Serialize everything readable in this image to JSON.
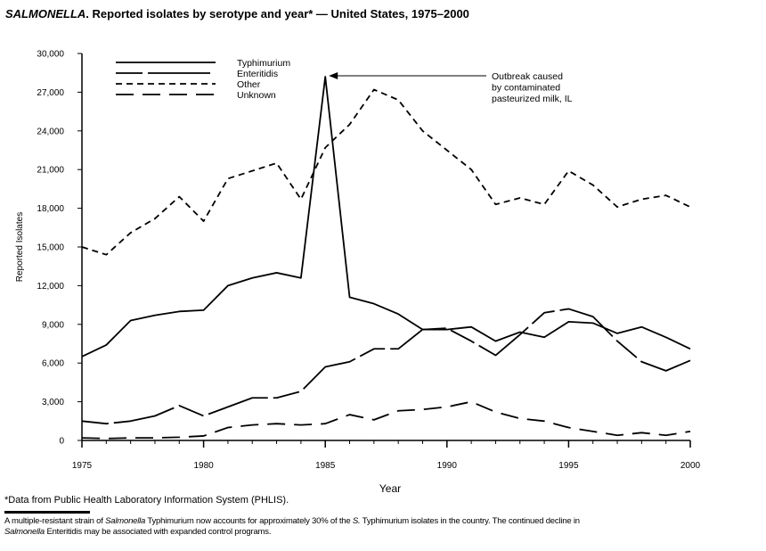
{
  "title": {
    "italic": "SALMONELLA",
    "rest": ". Reported isolates by serotype and year* — United States, 1975–2000"
  },
  "chart_data": {
    "type": "line",
    "xlabel": "Year",
    "ylabel": "Reported Isolates",
    "xlim": [
      1975,
      2000
    ],
    "ylim": [
      0,
      30000
    ],
    "x_ticks": [
      1975,
      1980,
      1985,
      1990,
      1995,
      2000
    ],
    "y_ticks": [
      0,
      3000,
      6000,
      9000,
      12000,
      15000,
      18000,
      21000,
      24000,
      27000,
      30000
    ],
    "y_tick_labels": [
      "0",
      "3,000",
      "6,000",
      "9,000",
      "12,000",
      "15,000",
      "18,000",
      "21,000",
      "24,000",
      "27,000",
      "30,000"
    ],
    "grid": false,
    "legend_position": "top-left",
    "x": [
      1975,
      1976,
      1977,
      1978,
      1979,
      1980,
      1981,
      1982,
      1983,
      1984,
      1985,
      1986,
      1987,
      1988,
      1989,
      1990,
      1991,
      1992,
      1993,
      1994,
      1995,
      1996,
      1997,
      1998,
      1999,
      2000
    ],
    "series": [
      {
        "name": "Typhimurium",
        "style": "solid",
        "values": [
          6500,
          7400,
          9300,
          9700,
          10000,
          10100,
          12000,
          12600,
          13000,
          12600,
          28200,
          11100,
          10600,
          9800,
          8600,
          8600,
          8800,
          7700,
          8400,
          8000,
          9200,
          9100,
          8300,
          8800,
          8000,
          7100
        ]
      },
      {
        "name": "Enteritidis",
        "style": "dash-long-solid",
        "values": [
          1500,
          1300,
          1500,
          1900,
          2700,
          1900,
          2600,
          3300,
          3300,
          3800,
          5700,
          6100,
          7100,
          7100,
          8600,
          8700,
          7700,
          6600,
          8200,
          9900,
          10200,
          9600,
          7700,
          6100,
          5400,
          6200
        ]
      },
      {
        "name": "Other",
        "style": "short-dash",
        "values": [
          15000,
          14400,
          16100,
          17200,
          18900,
          17000,
          20300,
          20900,
          21500,
          18700,
          22700,
          24500,
          27200,
          26400,
          24000,
          22500,
          21000,
          18300,
          18800,
          18300,
          20900,
          19800,
          18100,
          18700,
          19000,
          18100
        ]
      },
      {
        "name": "Unknown",
        "style": "long-dash",
        "values": [
          200,
          150,
          200,
          200,
          250,
          350,
          1000,
          1200,
          1300,
          1200,
          1300,
          2000,
          1600,
          2300,
          2400,
          2600,
          3000,
          2200,
          1700,
          1500,
          1000,
          700,
          400,
          600,
          400,
          700
        ]
      }
    ],
    "annotations": [
      {
        "x": 1985,
        "y": 28200,
        "lines": [
          "Outbreak caused",
          "by contaminated",
          "pasteurized milk, IL"
        ]
      }
    ]
  },
  "footnotes": {
    "source": "*Data from Public Health Laboratory Information System (PHLIS).",
    "note": [
      {
        "text": "A multiple-resistant strain of ",
        "italic": false
      },
      {
        "text": "Salmonella",
        "italic": true
      },
      {
        "text": "  Typhimurium now accounts for approximately 30% of the ",
        "italic": false
      },
      {
        "text": "S.",
        "italic": true
      },
      {
        "text": " Typhimurium isolates in the country. The continued decline in ",
        "italic": false
      },
      {
        "text": "Salmonella",
        "italic": true
      },
      {
        "text": " Enteritidis may be associated with expanded control programs.",
        "italic": false
      }
    ]
  }
}
